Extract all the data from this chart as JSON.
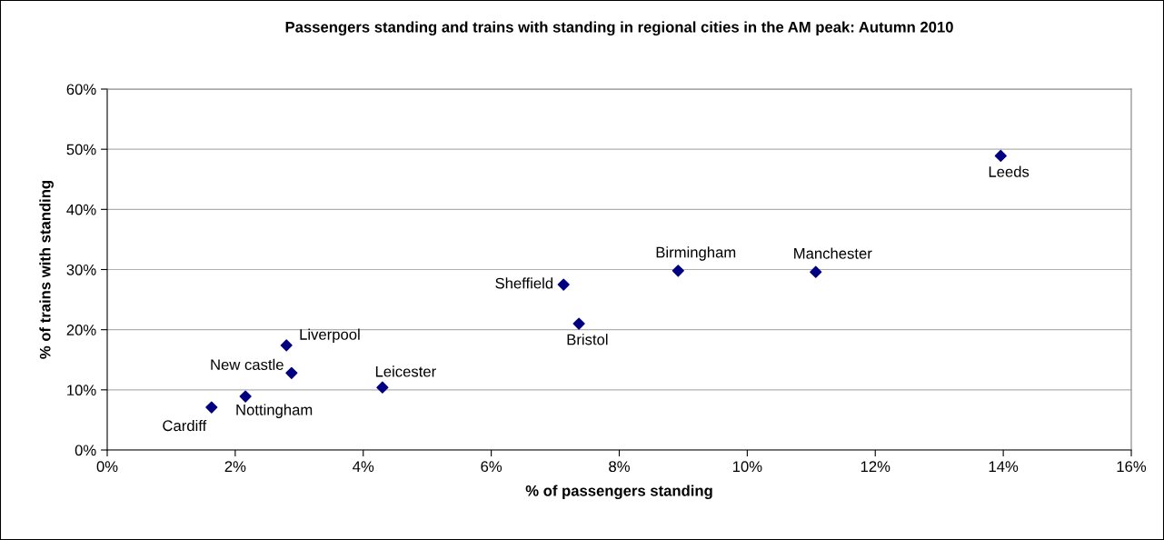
{
  "chart_data": {
    "type": "scatter",
    "title": "Passengers standing and trains with standing in regional cities in the AM peak: Autumn 2010",
    "xlabel": "% of passengers standing",
    "ylabel": "% of trains with standing",
    "series": [
      {
        "color": "#000080",
        "x": [
          1.63,
          2.16,
          2.8,
          2.88,
          4.3,
          7.13,
          7.37,
          8.92,
          11.07,
          13.96
        ],
        "values": [
          7.1,
          8.9,
          17.4,
          12.8,
          10.4,
          27.5,
          21.0,
          29.8,
          29.6,
          48.9
        ]
      }
    ],
    "annotations": [
      {
        "text": "Cardiff",
        "x": 1.63,
        "y": 7.1
      },
      {
        "text": "Nottingham",
        "x": 2.16,
        "y": 8.9
      },
      {
        "text": "Liverpool",
        "x": 2.8,
        "y": 17.4
      },
      {
        "text": "New castle",
        "x": 2.88,
        "y": 12.8
      },
      {
        "text": "Leicester",
        "x": 4.3,
        "y": 10.4
      },
      {
        "text": "Sheffield",
        "x": 7.13,
        "y": 27.5
      },
      {
        "text": "Bristol",
        "x": 7.37,
        "y": 21.0
      },
      {
        "text": "Birmingham",
        "x": 8.92,
        "y": 29.8
      },
      {
        "text": "Manchester",
        "x": 11.07,
        "y": 29.6
      },
      {
        "text": "Leeds",
        "x": 13.96,
        "y": 48.9
      }
    ],
    "xlim": [
      0,
      16
    ],
    "ylim": [
      0,
      60
    ],
    "xticks": [
      {
        "value": 0,
        "label": "0%"
      },
      {
        "value": 2,
        "label": "2%"
      },
      {
        "value": 4,
        "label": "4%"
      },
      {
        "value": 6,
        "label": "6%"
      },
      {
        "value": 8,
        "label": "8%"
      },
      {
        "value": 10,
        "label": "10%"
      },
      {
        "value": 12,
        "label": "12%"
      },
      {
        "value": 14,
        "label": "14%"
      },
      {
        "value": 16,
        "label": "16%"
      }
    ],
    "yticks": [
      {
        "value": 0,
        "label": "0%"
      },
      {
        "value": 10,
        "label": "10%"
      },
      {
        "value": 20,
        "label": "20%"
      },
      {
        "value": 30,
        "label": "30%"
      },
      {
        "value": 40,
        "label": "40%"
      },
      {
        "value": 50,
        "label": "50%"
      },
      {
        "value": 60,
        "label": "60%"
      }
    ],
    "grid": "y",
    "marker": "diamond",
    "legend": false
  }
}
